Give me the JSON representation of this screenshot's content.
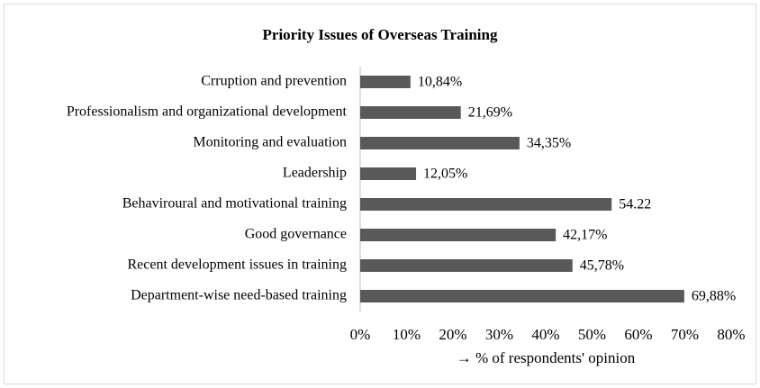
{
  "chart_data": {
    "type": "bar",
    "orientation": "horizontal",
    "title": "Priority Issues of Overseas Training",
    "x_label": "→ % of respondents' opinion",
    "categories": [
      "Crruption and prevention",
      "Professionalism and organizational development",
      "Monitoring and evaluation",
      "Leadership",
      "Behaviroural and motivational training",
      "Good governance",
      "Recent development issues in training",
      "Department-wise need-based training"
    ],
    "values": [
      10.84,
      21.69,
      34.35,
      12.05,
      54.22,
      42.17,
      45.78,
      69.88
    ],
    "value_labels": [
      "10,84%",
      "21,69%",
      "34,35%",
      "12,05%",
      "54.22",
      "42,17%",
      "45,78%",
      "69,88%"
    ],
    "color": "#595959",
    "xlim": [
      0,
      80
    ],
    "xticks": [
      {
        "value": 0,
        "label": "0%"
      },
      {
        "value": 10,
        "label": "10%"
      },
      {
        "value": 20,
        "label": "20%"
      },
      {
        "value": 30,
        "label": "30%"
      },
      {
        "value": 40,
        "label": "40%"
      },
      {
        "value": 50,
        "label": "50%"
      },
      {
        "value": 60,
        "label": "60%"
      },
      {
        "value": 70,
        "label": "70%"
      },
      {
        "value": 80,
        "label": "80%"
      }
    ],
    "grid": false
  }
}
